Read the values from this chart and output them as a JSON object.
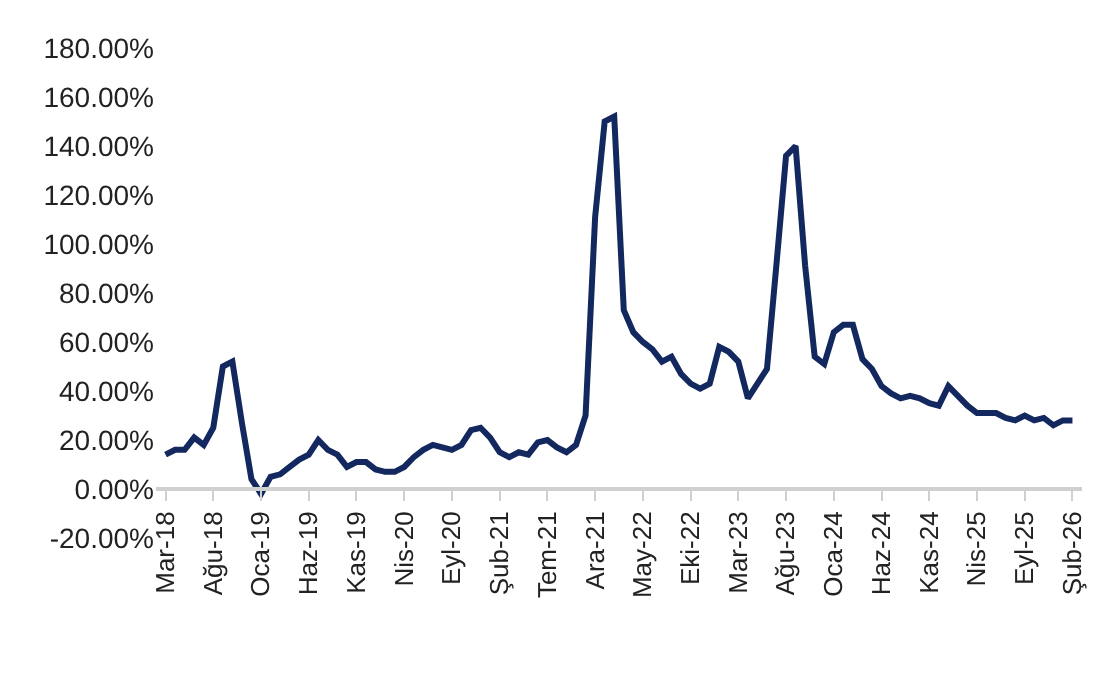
{
  "chart_data": {
    "type": "line",
    "categories": [
      "Mar-18",
      null,
      null,
      null,
      null,
      "Ağu-18",
      null,
      null,
      null,
      null,
      "Oca-19",
      null,
      null,
      null,
      null,
      "Haz-19",
      null,
      null,
      null,
      null,
      "Kas-19",
      null,
      null,
      null,
      null,
      "Nis-20",
      null,
      null,
      null,
      null,
      "Eyl-20",
      null,
      null,
      null,
      null,
      "Şub-21",
      null,
      null,
      null,
      null,
      "Tem-21",
      null,
      null,
      null,
      null,
      "Ara-21",
      null,
      null,
      null,
      null,
      "May-22",
      null,
      null,
      null,
      null,
      "Eki-22",
      null,
      null,
      null,
      null,
      "Mar-23",
      null,
      null,
      null,
      null,
      "Ağu-23",
      null,
      null,
      null,
      null,
      "Oca-24",
      null,
      null,
      null,
      null,
      "Haz-24",
      null,
      null,
      null,
      null,
      "Kas-24",
      null,
      null,
      null,
      null,
      "Nis-25",
      null,
      null,
      null,
      null,
      "Eyl-25",
      null,
      null,
      null,
      null,
      "Şub-26"
    ],
    "series": [
      {
        "color": "#13285f",
        "values": [
          14,
          16,
          16,
          21,
          18,
          25,
          50,
          52,
          27,
          4,
          -2,
          5,
          6,
          9,
          12,
          14,
          20,
          16,
          14,
          9,
          11,
          11,
          8,
          7,
          7,
          9,
          13,
          16,
          18,
          17,
          16,
          18,
          24,
          25,
          21,
          15,
          13,
          15,
          14,
          19,
          20,
          17,
          15,
          18,
          30,
          111,
          150,
          152,
          73,
          64,
          60,
          57,
          52,
          54,
          47,
          43,
          41,
          43,
          58,
          56,
          52,
          37,
          43,
          49,
          92,
          136,
          140,
          91,
          54,
          51,
          64,
          67,
          67,
          53,
          49,
          42,
          39,
          37,
          38,
          37,
          35,
          34,
          42,
          38,
          34,
          31,
          31,
          31,
          29,
          28,
          30,
          28,
          29,
          26,
          28,
          28
        ]
      }
    ],
    "ylim": [
      -20,
      180
    ],
    "yticks": [
      {
        "value": -20,
        "label": "-20.00%"
      },
      {
        "value": 0,
        "label": "0.00%"
      },
      {
        "value": 20,
        "label": "20.00%"
      },
      {
        "value": 40,
        "label": "40.00%"
      },
      {
        "value": 60,
        "label": "60.00%"
      },
      {
        "value": 80,
        "label": "80.00%"
      },
      {
        "value": 100,
        "label": "100.00%"
      },
      {
        "value": 120,
        "label": "120.00%"
      },
      {
        "value": 140,
        "label": "140.00%"
      },
      {
        "value": 160,
        "label": "160.00%"
      },
      {
        "value": 180,
        "label": "180.00%"
      }
    ],
    "marker": "none",
    "line_style": "solid"
  }
}
